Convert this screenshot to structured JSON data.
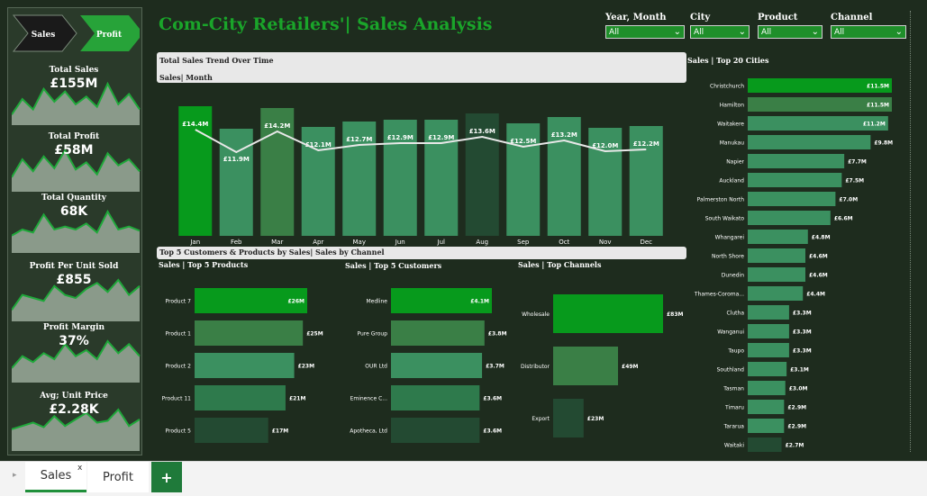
{
  "header": {
    "title": "Com-City Retailers'| Sales Analysis"
  },
  "nav": {
    "sales_label": "Sales",
    "profit_label": "Profit"
  },
  "kpis": [
    {
      "title": "Total Sales",
      "value": "£155M",
      "spark": [
        10,
        40,
        20,
        60,
        35,
        55,
        30,
        45,
        25,
        70,
        30,
        50,
        20
      ]
    },
    {
      "title": "Total Profit",
      "value": "£58M",
      "spark": [
        15,
        45,
        25,
        50,
        30,
        60,
        28,
        40,
        20,
        55,
        35,
        45,
        25
      ]
    },
    {
      "title": "Total Quantity",
      "value": "68K",
      "spark": [
        20,
        30,
        25,
        55,
        30,
        35,
        30,
        40,
        25,
        60,
        30,
        35,
        28
      ]
    },
    {
      "title": "Profit Per Unit Sold",
      "value": "£855",
      "spark": [
        10,
        35,
        30,
        25,
        50,
        35,
        30,
        45,
        55,
        40,
        60,
        35,
        50
      ]
    },
    {
      "title": "Profit Margin",
      "value": "37%",
      "spark": [
        15,
        35,
        25,
        40,
        30,
        55,
        35,
        45,
        30,
        60,
        40,
        55,
        35
      ]
    },
    {
      "title": "Avg; Unit Price",
      "value": "£2.28K",
      "spark": [
        25,
        30,
        35,
        28,
        45,
        30,
        40,
        50,
        35,
        38,
        55,
        30,
        40
      ]
    }
  ],
  "slicers": [
    {
      "label": "Year, Month",
      "value": "All"
    },
    {
      "label": "City",
      "value": "All"
    },
    {
      "label": "Product",
      "value": "All"
    },
    {
      "label": "Channel",
      "value": "All"
    }
  ],
  "trend": {
    "header": "Total Sales Trend Over Time",
    "subtitle": "Sales| Month"
  },
  "top5_header": "Top 5 Customers & Products by Sales| Sales by Channel",
  "colors": {
    "bright_green": "#079a1c",
    "mid_green": "#3b9060",
    "dark_green": "#234a32",
    "bg": "#1e2c1e"
  },
  "chart_data": [
    {
      "type": "bar",
      "title": "Sales| Month",
      "categories": [
        "Jan",
        "Feb",
        "Mar",
        "Apr",
        "May",
        "Jun",
        "Jul",
        "Aug",
        "Sep",
        "Oct",
        "Nov",
        "Dec"
      ],
      "values": [
        14.4,
        11.9,
        14.2,
        12.1,
        12.7,
        12.9,
        12.9,
        13.6,
        12.5,
        13.2,
        12.0,
        12.2
      ],
      "data_labels": [
        "£14.4M",
        "£11.9M",
        "£14.2M",
        "£12.1M",
        "£12.7M",
        "£12.9M",
        "£12.9M",
        "£13.6M",
        "£12.5M",
        "£13.2M",
        "£12.0M",
        "£12.2M"
      ],
      "overlay": "line"
    },
    {
      "type": "bar",
      "title": "Sales | Top 5 Products",
      "orientation": "horizontal",
      "categories": [
        "Product 7",
        "Product 1",
        "Product 2",
        "Product 11",
        "Product 5"
      ],
      "values": [
        26,
        25,
        23,
        21,
        17
      ],
      "data_labels": [
        "£26M",
        "£25M",
        "£23M",
        "£21M",
        "£17M"
      ]
    },
    {
      "type": "bar",
      "title": "Sales | Top 5 Customers",
      "orientation": "horizontal",
      "categories": [
        "Medline",
        "Pure Group",
        "OUR Ltd",
        "Eminence C...",
        "Apotheca, Ltd"
      ],
      "values": [
        4.1,
        3.8,
        3.7,
        3.6,
        3.6
      ],
      "data_labels": [
        "£4.1M",
        "£3.8M",
        "£3.7M",
        "£3.6M",
        "£3.6M"
      ]
    },
    {
      "type": "bar",
      "title": "Sales | Top Channels",
      "orientation": "horizontal",
      "categories": [
        "Wholesale",
        "Distributor",
        "Export"
      ],
      "values": [
        83,
        49,
        23
      ],
      "data_labels": [
        "£83M",
        "£49M",
        "£23M"
      ]
    },
    {
      "type": "bar",
      "title": "Sales | Top 20 Cities",
      "orientation": "horizontal",
      "categories": [
        "Christchurch",
        "Hamilton",
        "Waitakere",
        "Manukau",
        "Napier",
        "Auckland",
        "Palmerston North",
        "South Waikato",
        "Whangarei",
        "North Shore",
        "Dunedin",
        "Thames-Coroma...",
        "Clutha",
        "Wanganui",
        "Taupo",
        "Southland",
        "Tasman",
        "Timaru",
        "Tararua",
        "Waitaki"
      ],
      "values": [
        11.5,
        11.5,
        11.2,
        9.8,
        7.7,
        7.5,
        7.0,
        6.6,
        4.8,
        4.6,
        4.6,
        4.4,
        3.3,
        3.3,
        3.3,
        3.1,
        3.0,
        2.9,
        2.9,
        2.7
      ],
      "data_labels": [
        "£11.5M",
        "£11.5M",
        "£11.2M",
        "£9.8M",
        "£7.7M",
        "£7.5M",
        "£7.0M",
        "£6.6M",
        "£4.8M",
        "£4.6M",
        "£4.6M",
        "£4.4M",
        "£3.3M",
        "£3.3M",
        "£3.3M",
        "£3.1M",
        "£3.0M",
        "£2.9M",
        "£2.9M",
        "£2.7M"
      ]
    }
  ],
  "tabs": {
    "sales": "Sales",
    "profit": "Profit",
    "close": "x",
    "add": "+"
  }
}
